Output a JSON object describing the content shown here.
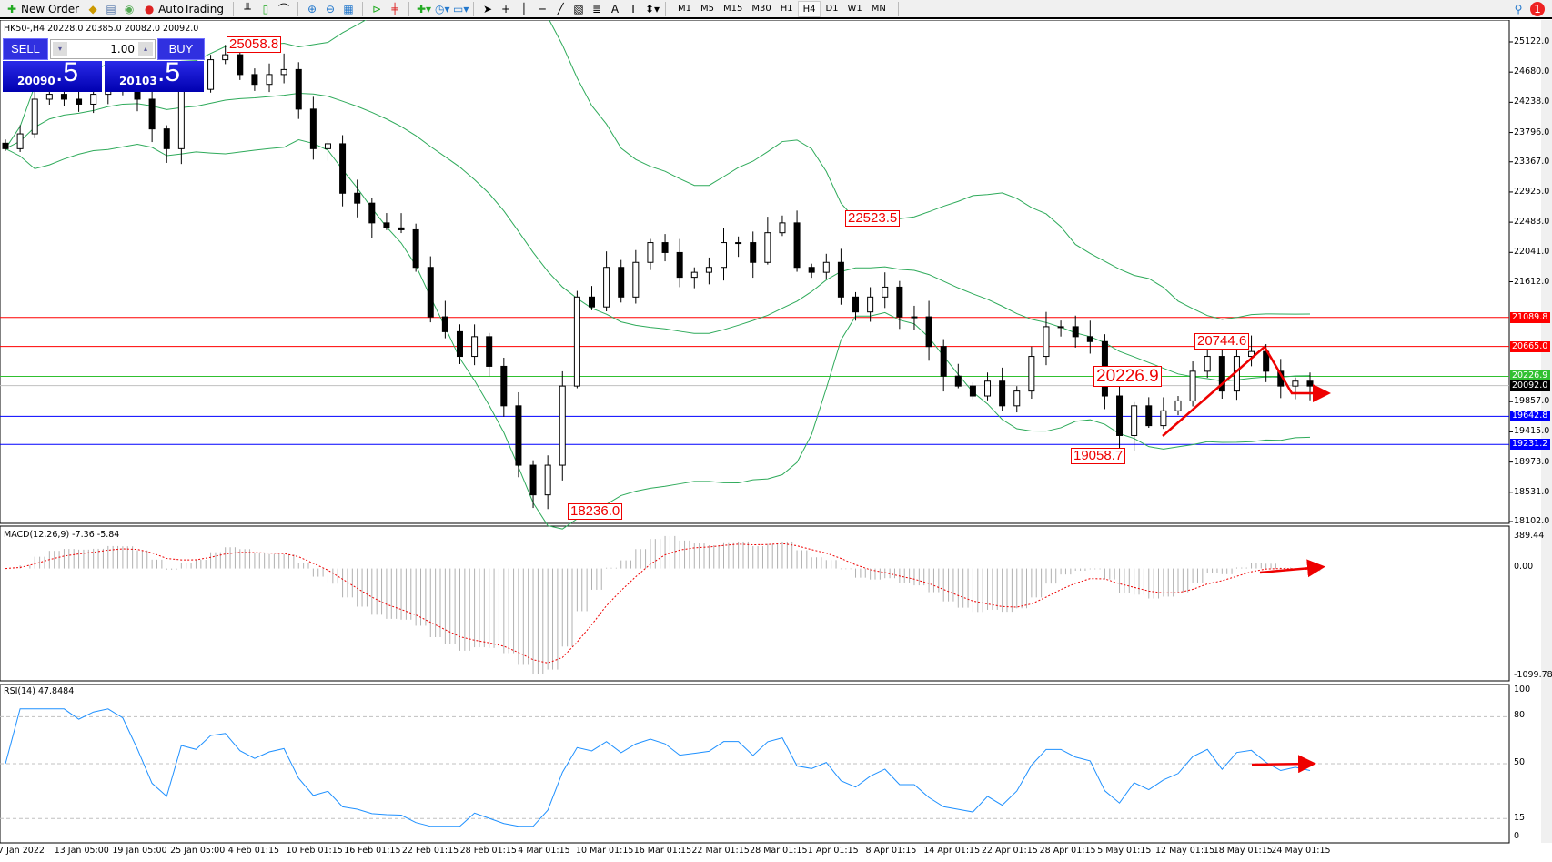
{
  "toolbar": {
    "new_order": "New Order",
    "autotrading": "AutoTrading",
    "timeframes": [
      "M1",
      "M5",
      "M15",
      "M30",
      "H1",
      "H4",
      "D1",
      "W1",
      "MN"
    ],
    "active_timeframe": "H4",
    "notification_count": "1"
  },
  "chart": {
    "header": "HK50-,H4  20228.0 20385.0 20082.0 20092.0",
    "symbol": "HK50-",
    "timeframe": "H4"
  },
  "trade_panel": {
    "sell_label": "SELL",
    "buy_label": "BUY",
    "volume": "1.00",
    "sell_price_main": "20090",
    "sell_price_big": ".5",
    "buy_price_main": "20103",
    "buy_price_big": ".5"
  },
  "price_axis": [
    "25122.0",
    "24680.0",
    "24238.0",
    "23796.0",
    "23367.0",
    "22925.0",
    "22483.0",
    "22041.0",
    "21612.0",
    "19857.0",
    "19415.0",
    "18973.0",
    "18531.0",
    "18102.0"
  ],
  "levels": [
    {
      "value": 21089.8,
      "label": "21089.8",
      "color": "#ff0000"
    },
    {
      "value": 20665.0,
      "label": "20665.0",
      "color": "#ff0000"
    },
    {
      "value": 20226.9,
      "label": "20226.9",
      "color": "#00c000"
    },
    {
      "value": 20092.0,
      "label": "20092.0",
      "color": "#000000"
    },
    {
      "value": 19642.8,
      "label": "19642.8",
      "color": "#0000ff"
    },
    {
      "value": 19231.2,
      "label": "19231.2",
      "color": "#0000ff"
    }
  ],
  "annotations": [
    "25058.8",
    "22523.5",
    "18236.0",
    "20744.6",
    "20226.9",
    "19058.7"
  ],
  "macd": {
    "header": "MACD(12,26,9) -7.36 -5.84",
    "axis": [
      "389.44",
      "0.00",
      "-1099.78"
    ]
  },
  "rsi": {
    "header": "RSI(14) 47.8484",
    "axis": [
      "100",
      "80",
      "50",
      "15",
      "0"
    ]
  },
  "time_axis": [
    "7 Jan 2022",
    "13 Jan 05:00",
    "19 Jan 05:00",
    "25 Jan 05:00",
    "4 Feb 01:15",
    "10 Feb 01:15",
    "16 Feb 01:15",
    "22 Feb 01:15",
    "28 Feb 01:15",
    "4 Mar 01:15",
    "10 Mar 01:15",
    "16 Mar 01:15",
    "22 Mar 01:15",
    "28 Mar 01:15",
    "1 Apr 01:15",
    "8 Apr 01:15",
    "14 Apr 01:15",
    "22 Apr 01:15",
    "28 Apr 01:15",
    "5 May 01:15",
    "12 May 01:15",
    "18 May 01:15",
    "24 May 01:15"
  ],
  "chart_data": {
    "type": "candlestick",
    "ylim": [
      18102,
      25122
    ],
    "closes": [
      23559,
      23776,
      24283,
      24355,
      24283,
      24210,
      24355,
      24572,
      24500,
      24283,
      23848,
      23559,
      24500,
      24427,
      24861,
      24934,
      24644,
      24500,
      24644,
      24717,
      24138,
      23559,
      23631,
      22907,
      22762,
      22473,
      22400,
      22372,
      21822,
      21098,
      20881,
      20519,
      20808,
      20374,
      19796,
      18927,
      18493,
      18927,
      20085,
      21388,
      21243,
      21822,
      21388,
      21895,
      22184,
      22039,
      21677,
      21750,
      21822,
      22184,
      22184,
      21895,
      22329,
      22473,
      21822,
      21750,
      21895,
      21388,
      21170,
      21388,
      21533,
      21098,
      21098,
      20664,
      20230,
      20085,
      19940,
      20157,
      19796,
      20012,
      20519,
      20954,
      20954,
      20808,
      20736,
      19940,
      19361,
      19796,
      19506,
      19723,
      19868,
      20302,
      20519,
      20012,
      20519,
      20591,
      20302,
      20085,
      20157,
      20085
    ],
    "indicators": [
      "Bollinger Bands",
      "MACD(12,26,9)",
      "RSI(14)"
    ]
  }
}
